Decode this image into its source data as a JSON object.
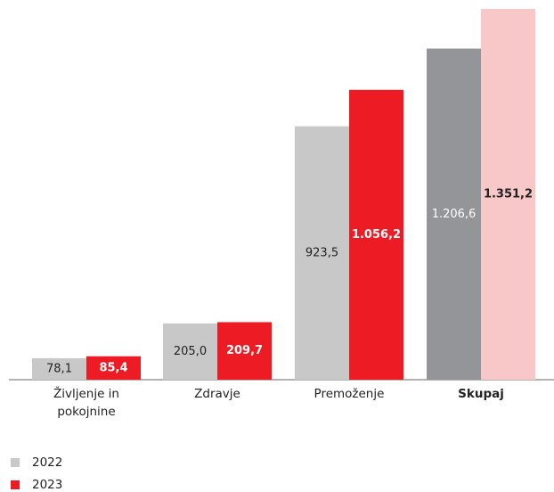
{
  "chart_data": {
    "type": "bar",
    "categories": [
      "Življenje in pokojnine",
      "Zdravje",
      "Premoženje",
      "Skupaj"
    ],
    "series": [
      {
        "name": "2022",
        "color": "#c8c8c8",
        "colors": [
          "#c8c8c8",
          "#c8c8c8",
          "#c8c8c8",
          "#939598"
        ],
        "label_colors": [
          "#222222",
          "#222222",
          "#222222",
          "#ffffff"
        ],
        "values": [
          78.1,
          205.0,
          923.5,
          1206.6
        ],
        "value_labels": [
          "78,1",
          "205,0",
          "923,5",
          "1.206,6"
        ]
      },
      {
        "name": "2023",
        "color": "#ed1c24",
        "colors": [
          "#ed1c24",
          "#ed1c24",
          "#ed1c24",
          "#f8c8c9"
        ],
        "label_colors": [
          "#ffffff",
          "#ffffff",
          "#ffffff",
          "#222222"
        ],
        "values": [
          85.4,
          209.7,
          1056.2,
          1351.2
        ],
        "value_labels": [
          "85,4",
          "209,7",
          "1.056,2",
          "1.351,2"
        ]
      }
    ]
  }
}
